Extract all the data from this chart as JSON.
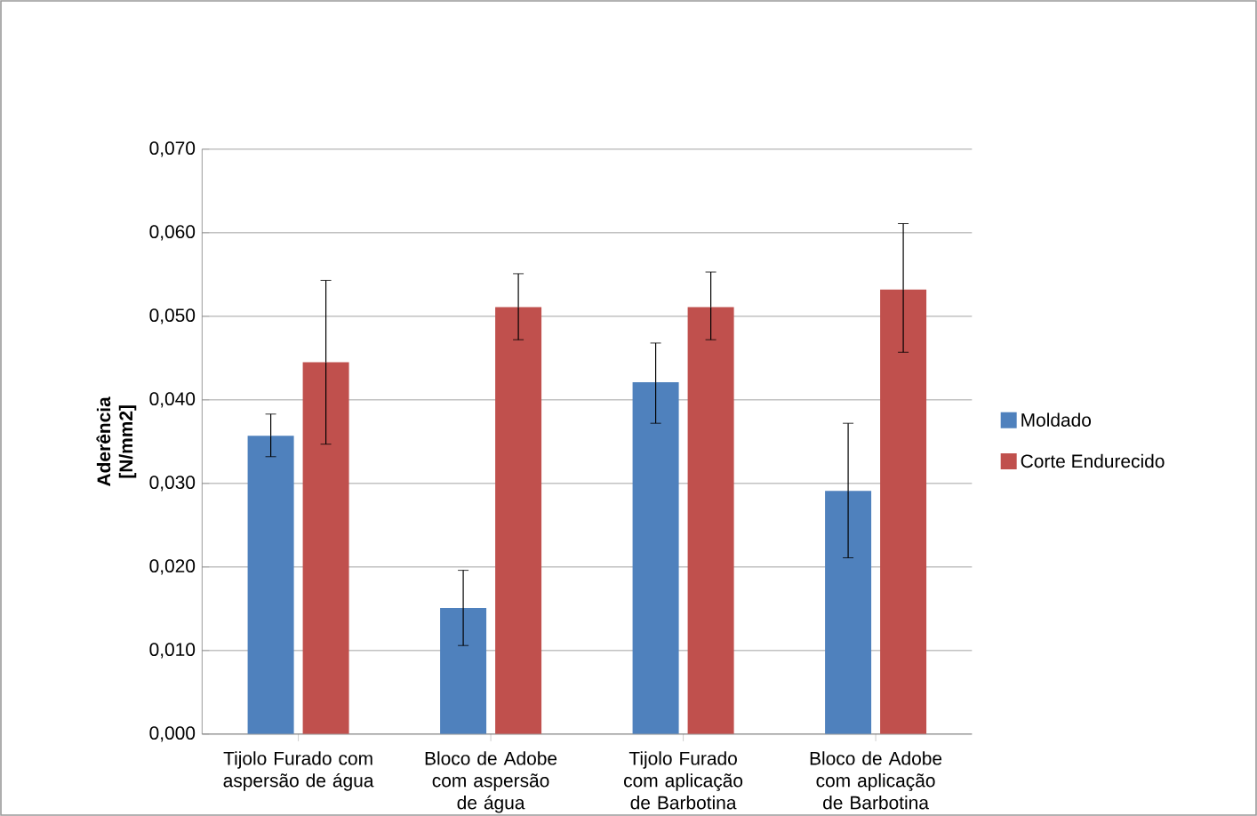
{
  "chart_data": {
    "type": "bar",
    "ylabel": "Aderência [N/mm2]",
    "categories": [
      "Tijolo Furado com aspersão de água",
      "Bloco de Adobe com aspersão de água",
      "Tijolo Furado com aplicação de Barbotina",
      "Bloco de Adobe com aplicação de Barbotina"
    ],
    "series": [
      {
        "name": "Moldado",
        "color": "#4f81bd",
        "values": [
          0.0357,
          0.0151,
          0.0421,
          0.0291
        ],
        "errors": [
          [
            0.0332,
            0.0383
          ],
          [
            0.0106,
            0.0196
          ],
          [
            0.0372,
            0.0468
          ],
          [
            0.0211,
            0.0372
          ]
        ]
      },
      {
        "name": "Corte Endurecido",
        "color": "#c0504d",
        "values": [
          0.0445,
          0.0511,
          0.0511,
          0.0532
        ],
        "errors": [
          [
            0.0347,
            0.0543
          ],
          [
            0.0472,
            0.0551
          ],
          [
            0.0472,
            0.0553
          ],
          [
            0.0457,
            0.0611
          ]
        ]
      }
    ],
    "ylim": [
      0,
      0.07
    ],
    "yticks": [
      {
        "value": 0,
        "label": "0,000"
      },
      {
        "value": 0.01,
        "label": "0,010"
      },
      {
        "value": 0.02,
        "label": "0,020"
      },
      {
        "value": 0.03,
        "label": "0,030"
      },
      {
        "value": 0.04,
        "label": "0,040"
      },
      {
        "value": 0.05,
        "label": "0,050"
      },
      {
        "value": 0.06,
        "label": "0,060"
      },
      {
        "value": 0.07,
        "label": "0,070"
      }
    ],
    "grid": "y",
    "legend": "right"
  }
}
